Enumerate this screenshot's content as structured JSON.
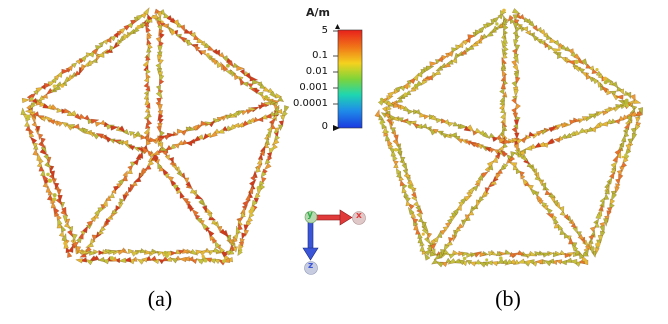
{
  "panels": [
    {
      "label": "(a)"
    },
    {
      "label": "(b)"
    }
  ],
  "colorbar": {
    "unit": "A/m",
    "ticks": [
      "5",
      "0.1",
      "0.01",
      "0.001",
      "0.0001",
      "0"
    ],
    "colors": [
      "#e8201c",
      "#f07818",
      "#f4d21e",
      "#7ed43a",
      "#1fd6b0",
      "#1f8ee8",
      "#1a3ae0"
    ]
  },
  "axes": {
    "x_label": "x",
    "y_label": "y",
    "z_label": "z",
    "x_color": "#e03a3a",
    "z_color": "#3a55d8",
    "y_color": "#2fae4a"
  }
}
